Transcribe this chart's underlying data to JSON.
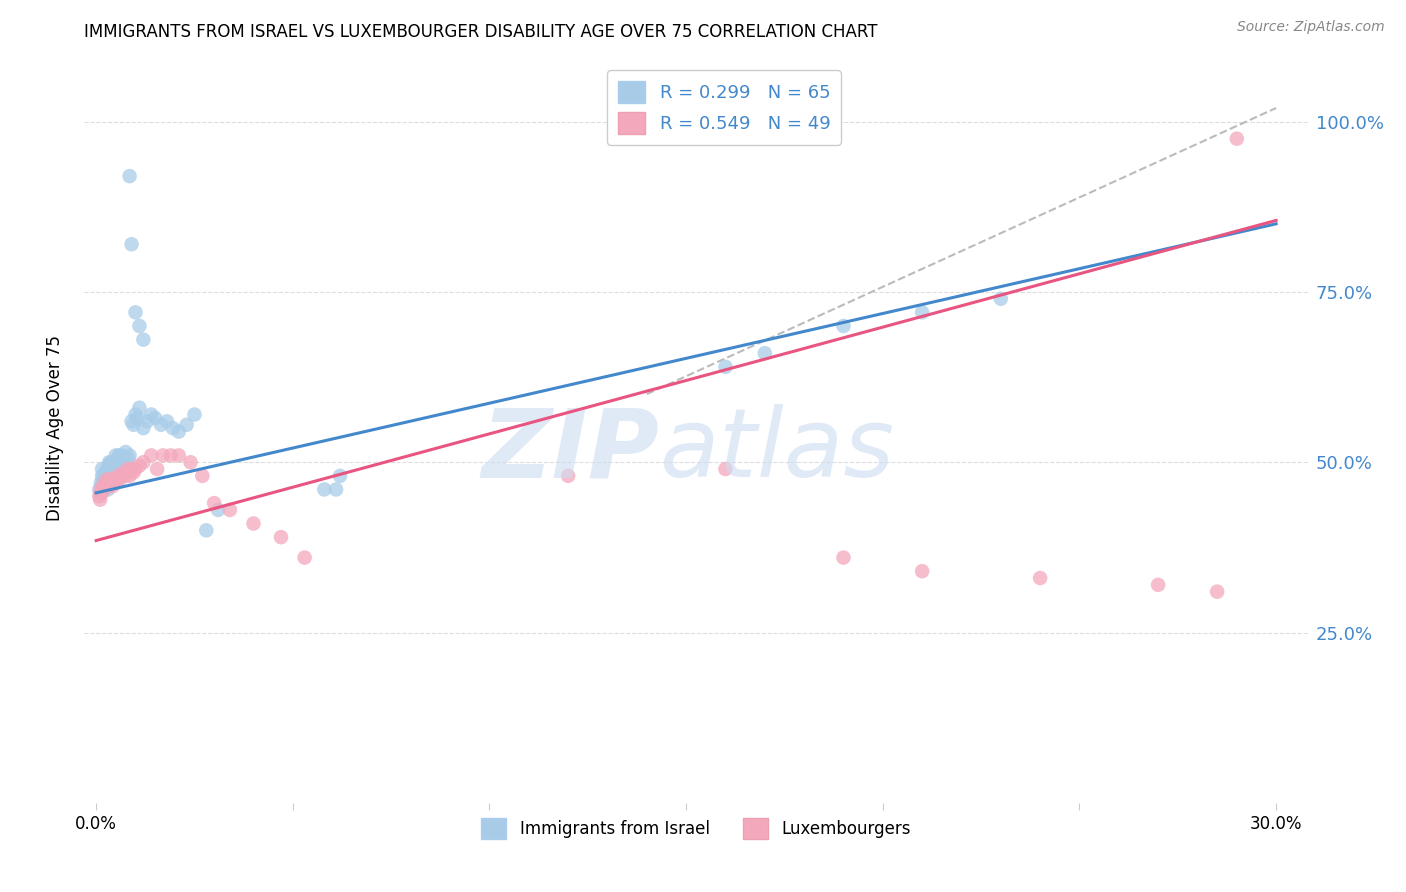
{
  "title": "IMMIGRANTS FROM ISRAEL VS LUXEMBOURGER DISABILITY AGE OVER 75 CORRELATION CHART",
  "source": "Source: ZipAtlas.com",
  "ylabel": "Disability Age Over 75",
  "color_israel": "#a8cce8",
  "color_lux": "#f4a8bc",
  "color_israel_line": "#4488cc",
  "color_lux_line": "#e85580",
  "color_dashed": "#bbbbbb",
  "legend_text1": "R = 0.299   N = 65",
  "legend_text2": "R = 0.549   N = 49",
  "legend_label1": "Immigrants from Israel",
  "legend_label2": "Luxembourgers",
  "israel_x": [
    0.0008,
    0.001,
    0.0012,
    0.0014,
    0.0015,
    0.0015,
    0.0018,
    0.002,
    0.0022,
    0.0023,
    0.0025,
    0.0027,
    0.0028,
    0.003,
    0.0032,
    0.0033,
    0.0035,
    0.0038,
    0.004,
    0.0042,
    0.0045,
    0.0048,
    0.005,
    0.0052,
    0.0055,
    0.0058,
    0.006,
    0.0062,
    0.0065,
    0.0068,
    0.007,
    0.0075,
    0.0078,
    0.0082,
    0.0085,
    0.009,
    0.0095,
    0.01,
    0.0105,
    0.011,
    0.012,
    0.013,
    0.014,
    0.015,
    0.0165,
    0.018,
    0.0195,
    0.021,
    0.023,
    0.025,
    0.028,
    0.031,
    0.058,
    0.061,
    0.062,
    0.16,
    0.17,
    0.19,
    0.21,
    0.23,
    0.0085,
    0.009,
    0.01,
    0.011,
    0.012
  ],
  "israel_y": [
    0.46,
    0.455,
    0.47,
    0.465,
    0.48,
    0.49,
    0.475,
    0.48,
    0.485,
    0.465,
    0.47,
    0.485,
    0.49,
    0.46,
    0.495,
    0.5,
    0.485,
    0.5,
    0.49,
    0.48,
    0.5,
    0.495,
    0.51,
    0.495,
    0.505,
    0.51,
    0.495,
    0.505,
    0.51,
    0.5,
    0.505,
    0.515,
    0.5,
    0.505,
    0.51,
    0.56,
    0.555,
    0.57,
    0.565,
    0.58,
    0.55,
    0.56,
    0.57,
    0.565,
    0.555,
    0.56,
    0.55,
    0.545,
    0.555,
    0.57,
    0.4,
    0.43,
    0.46,
    0.46,
    0.48,
    0.64,
    0.66,
    0.7,
    0.72,
    0.74,
    0.92,
    0.82,
    0.72,
    0.7,
    0.68
  ],
  "lux_x": [
    0.0008,
    0.001,
    0.0012,
    0.0015,
    0.0018,
    0.002,
    0.0022,
    0.0025,
    0.0028,
    0.003,
    0.0033,
    0.0035,
    0.0038,
    0.0042,
    0.0045,
    0.0048,
    0.0052,
    0.0055,
    0.006,
    0.0065,
    0.007,
    0.0075,
    0.008,
    0.0085,
    0.009,
    0.0095,
    0.01,
    0.011,
    0.012,
    0.014,
    0.0155,
    0.017,
    0.019,
    0.021,
    0.024,
    0.027,
    0.03,
    0.034,
    0.04,
    0.047,
    0.053,
    0.12,
    0.16,
    0.19,
    0.21,
    0.24,
    0.27,
    0.285,
    0.29
  ],
  "lux_y": [
    0.45,
    0.445,
    0.46,
    0.455,
    0.465,
    0.46,
    0.47,
    0.465,
    0.475,
    0.47,
    0.465,
    0.47,
    0.475,
    0.465,
    0.47,
    0.475,
    0.47,
    0.48,
    0.475,
    0.48,
    0.485,
    0.48,
    0.49,
    0.48,
    0.49,
    0.485,
    0.49,
    0.495,
    0.5,
    0.51,
    0.49,
    0.51,
    0.51,
    0.51,
    0.5,
    0.48,
    0.44,
    0.43,
    0.41,
    0.39,
    0.36,
    0.48,
    0.49,
    0.36,
    0.34,
    0.33,
    0.32,
    0.31,
    0.975
  ],
  "isr_line_x0": 0.0,
  "isr_line_x1": 0.3,
  "isr_line_y0": 0.455,
  "isr_line_y1": 0.85,
  "lux_line_x0": 0.0,
  "lux_line_x1": 0.3,
  "lux_line_y0": 0.385,
  "lux_line_y1": 0.855,
  "dash_line_x0": 0.14,
  "dash_line_x1": 0.3,
  "dash_line_y0": 0.6,
  "dash_line_y1": 1.02,
  "xlim_min": -0.003,
  "xlim_max": 0.308,
  "ylim_min": 0.0,
  "ylim_max": 1.1,
  "grid_color": "#dddddd",
  "title_fontsize": 12,
  "right_tick_color": "#4488cc"
}
